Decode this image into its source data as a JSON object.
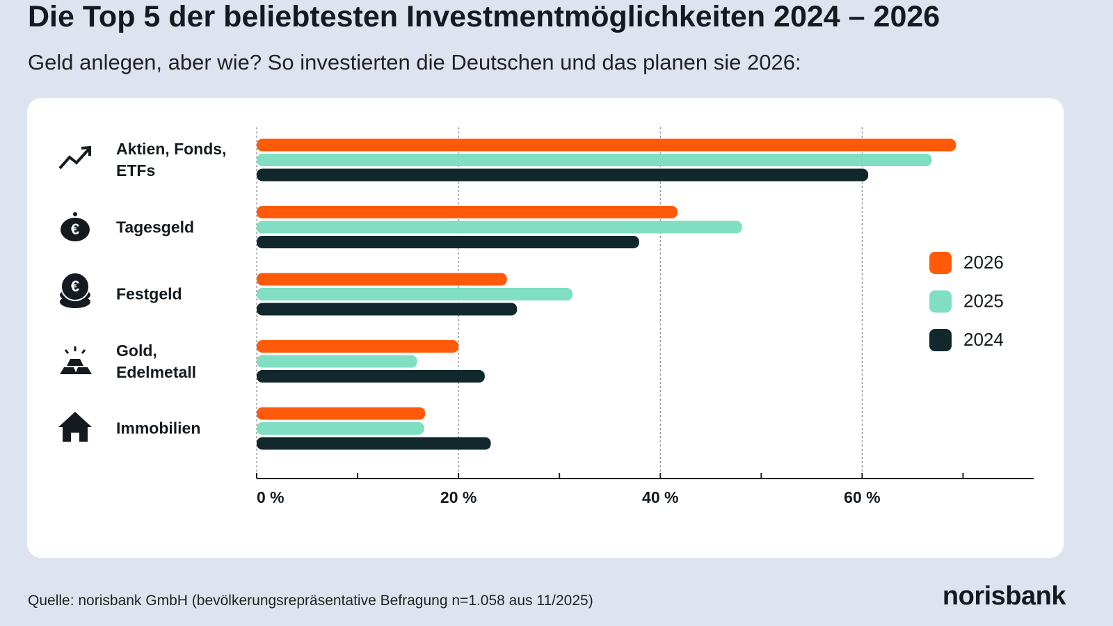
{
  "chart_data": {
    "type": "bar",
    "orientation": "horizontal",
    "title": "Die Top 5 der beliebtesten Investmentmöglichkeiten 2024 – 2026",
    "subtitle": "Geld anlegen, aber wie? So investierten die Deutschen und das planen sie 2026:",
    "categories": [
      "Aktien, Fonds, ETFs",
      "Tagesgeld",
      "Festgeld",
      "Gold, Edelmetall",
      "Immobilien"
    ],
    "series": [
      {
        "name": "2026",
        "color": "#ff5a0a",
        "values": [
          69.3,
          41.7,
          24.8,
          20.0,
          16.7
        ]
      },
      {
        "name": "2025",
        "color": "#80dec2",
        "values": [
          66.9,
          48.1,
          31.3,
          15.9,
          16.6
        ]
      },
      {
        "name": "2024",
        "color": "#10282b",
        "values": [
          60.6,
          37.9,
          25.8,
          22.6,
          23.2
        ]
      }
    ],
    "xlim": [
      0,
      77
    ],
    "xticks": [
      {
        "value": 0,
        "label": "0 %"
      },
      {
        "value": 20,
        "label": "20 %"
      },
      {
        "value": 40,
        "label": "40 %"
      },
      {
        "value": 60,
        "label": "60 %"
      }
    ],
    "xminorticks": [
      10,
      30,
      50,
      70
    ],
    "grid": true,
    "legend": "right",
    "source": "Quelle: norisbank GmbH (bevölkerungsrepräsentative Befragung n=1.058 aus 11/2025)",
    "brand": "norisbank"
  }
}
